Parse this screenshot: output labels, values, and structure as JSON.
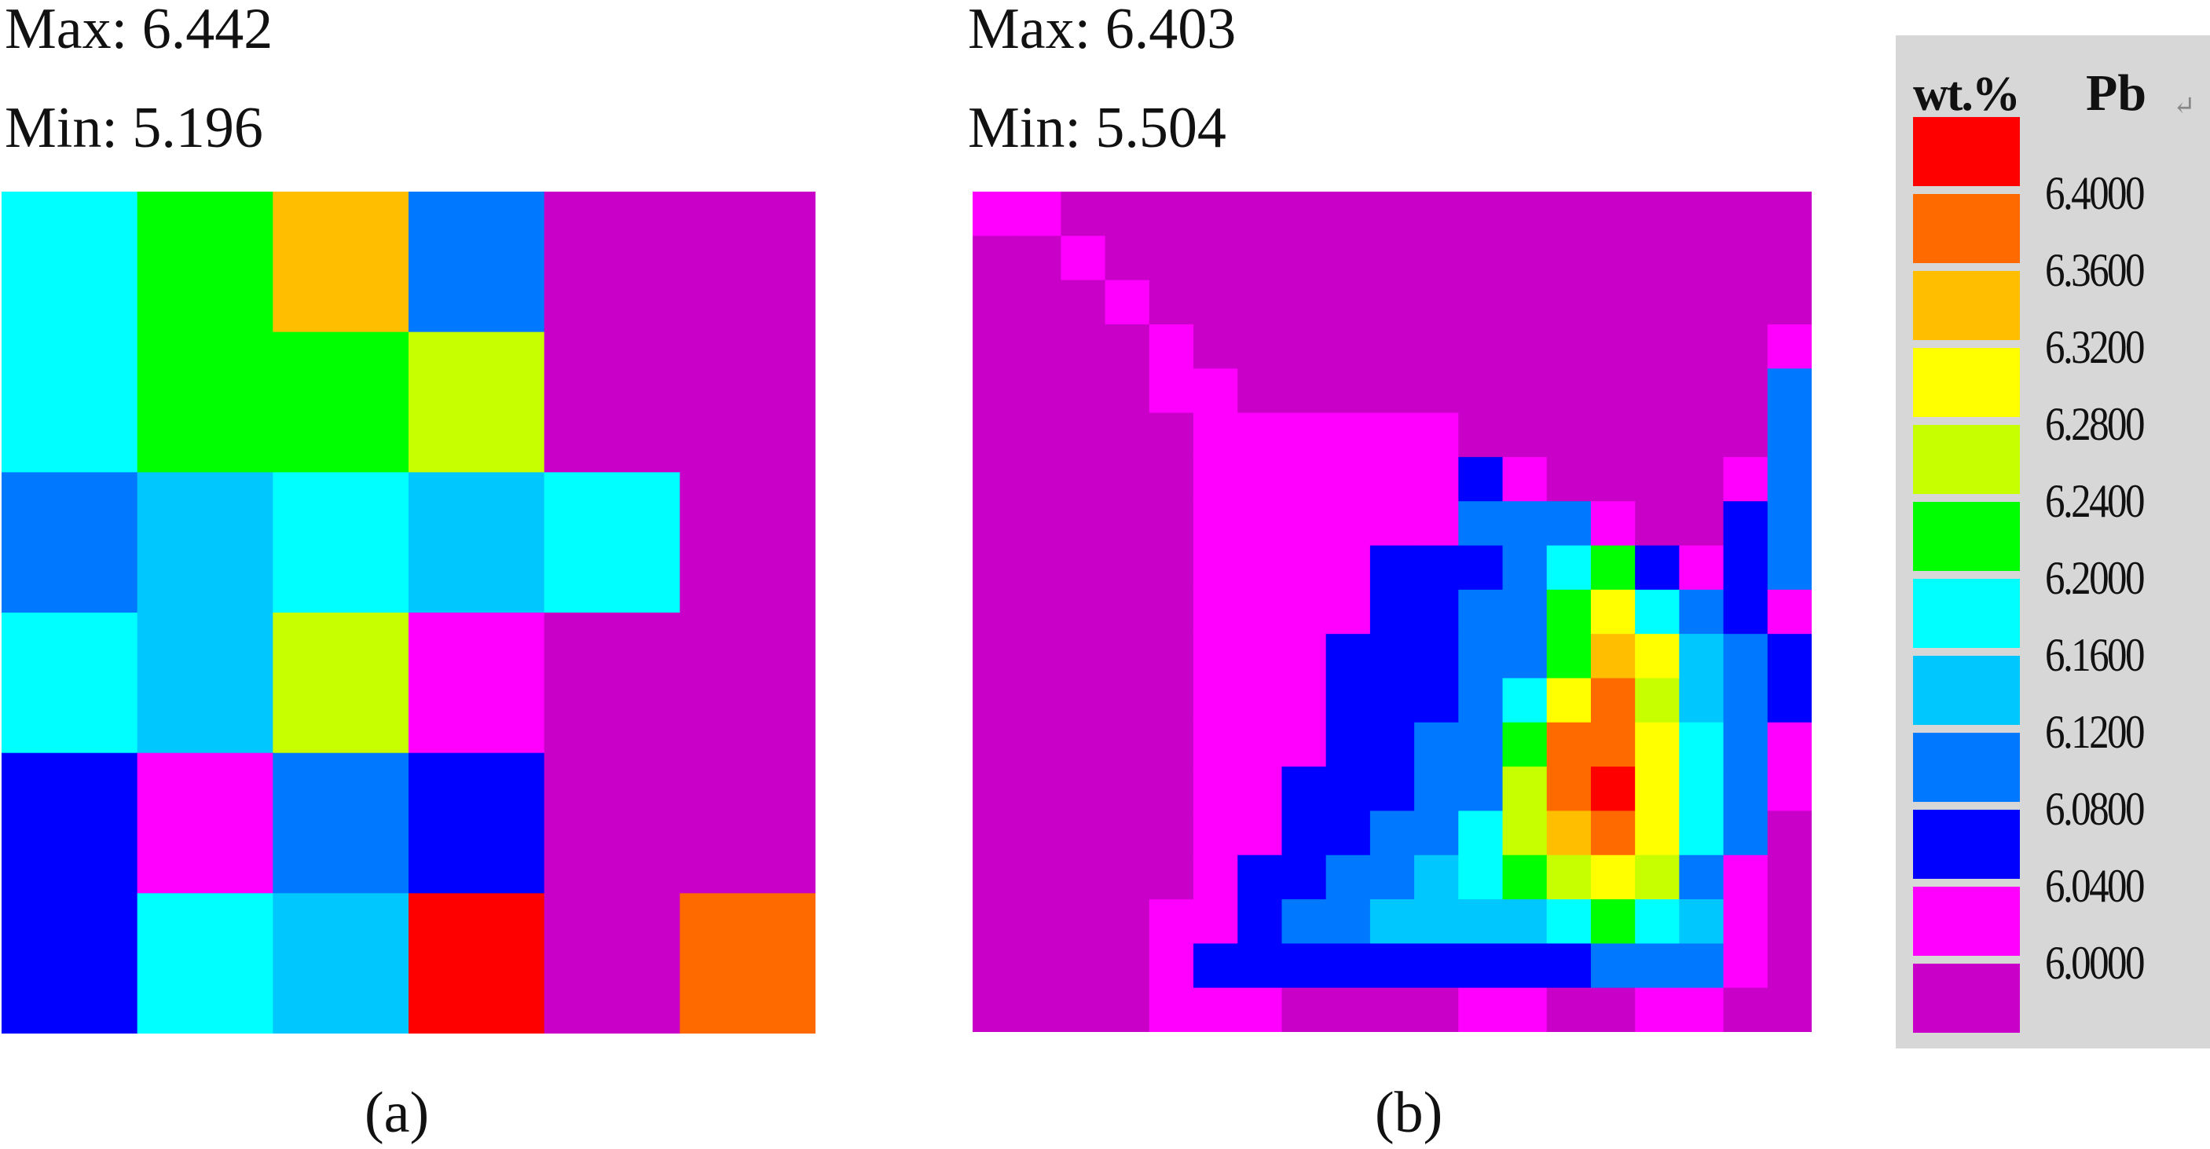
{
  "panel_a": {
    "max_text": "Max: 6.442",
    "min_text": "Min: 5.196",
    "caption": "(a)"
  },
  "panel_b": {
    "max_text": "Max: 6.403",
    "min_text": "Min: 5.504",
    "caption": "(b)"
  },
  "legend": {
    "unit": "wt.%",
    "element": "Pb",
    "return_mark": "↵",
    "ticks": [
      "6.4000",
      "6.3600",
      "6.3200",
      "6.2800",
      "6.2400",
      "6.2000",
      "6.1600",
      "6.1200",
      "6.0800",
      "6.0400",
      "6.0000"
    ],
    "colors": [
      "#ff0000",
      "#ff6a00",
      "#ffbf00",
      "#ffff00",
      "#c8ff00",
      "#00ff00",
      "#00ffff",
      "#00c8ff",
      "#0078ff",
      "#0000ff",
      "#ff00ff",
      "#c800c8"
    ]
  },
  "chart_data": [
    {
      "type": "heatmap",
      "panel": "(a)",
      "value_label": "wt.% Pb",
      "max": 6.442,
      "min": 5.196,
      "rows": 6,
      "cols": 6,
      "levels": [
        [
          6,
          5,
          2,
          8,
          11,
          11
        ],
        [
          6,
          5,
          5,
          4,
          11,
          11
        ],
        [
          8,
          7,
          6,
          7,
          6,
          11
        ],
        [
          6,
          7,
          4,
          10,
          11,
          11
        ],
        [
          9,
          10,
          8,
          9,
          11,
          11
        ],
        [
          9,
          6,
          7,
          0,
          11,
          1
        ]
      ]
    },
    {
      "type": "heatmap",
      "panel": "(b)",
      "value_label": "wt.% Pb",
      "max": 6.403,
      "min": 5.504,
      "rows": 19,
      "cols": 19,
      "levels": [
        [
          10,
          10,
          11,
          11,
          11,
          11,
          11,
          11,
          11,
          11,
          11,
          11,
          11,
          11,
          11,
          11,
          11,
          11,
          11
        ],
        [
          11,
          11,
          10,
          11,
          11,
          11,
          11,
          11,
          11,
          11,
          11,
          11,
          11,
          11,
          11,
          11,
          11,
          11,
          11
        ],
        [
          11,
          11,
          11,
          10,
          11,
          11,
          11,
          11,
          11,
          11,
          11,
          11,
          11,
          11,
          11,
          11,
          11,
          11,
          11
        ],
        [
          11,
          11,
          11,
          11,
          10,
          11,
          11,
          11,
          11,
          11,
          11,
          11,
          11,
          11,
          11,
          11,
          11,
          11,
          10
        ],
        [
          11,
          11,
          11,
          11,
          10,
          10,
          11,
          11,
          11,
          11,
          11,
          11,
          11,
          11,
          11,
          11,
          11,
          11,
          8
        ],
        [
          11,
          11,
          11,
          11,
          11,
          10,
          10,
          10,
          10,
          10,
          10,
          11,
          11,
          11,
          11,
          11,
          11,
          11,
          8
        ],
        [
          11,
          11,
          11,
          11,
          11,
          10,
          10,
          10,
          10,
          10,
          10,
          9,
          10,
          11,
          11,
          11,
          11,
          10,
          8
        ],
        [
          11,
          11,
          11,
          11,
          11,
          10,
          10,
          10,
          10,
          10,
          10,
          8,
          8,
          8,
          10,
          11,
          11,
          9,
          8
        ],
        [
          11,
          11,
          11,
          11,
          11,
          10,
          10,
          10,
          10,
          9,
          9,
          9,
          8,
          6,
          5,
          9,
          10,
          9,
          8
        ],
        [
          11,
          11,
          11,
          11,
          11,
          10,
          10,
          10,
          10,
          9,
          9,
          8,
          8,
          5,
          3,
          6,
          8,
          9,
          10
        ],
        [
          11,
          11,
          11,
          11,
          11,
          10,
          10,
          10,
          9,
          9,
          9,
          8,
          8,
          5,
          2,
          3,
          7,
          8,
          9
        ],
        [
          11,
          11,
          11,
          11,
          11,
          10,
          10,
          10,
          9,
          9,
          9,
          8,
          6,
          3,
          1,
          4,
          7,
          8,
          9
        ],
        [
          11,
          11,
          11,
          11,
          11,
          10,
          10,
          10,
          9,
          9,
          8,
          8,
          5,
          1,
          1,
          3,
          6,
          8,
          10
        ],
        [
          11,
          11,
          11,
          11,
          11,
          10,
          10,
          9,
          9,
          9,
          8,
          8,
          4,
          1,
          0,
          3,
          6,
          8,
          10
        ],
        [
          11,
          11,
          11,
          11,
          11,
          10,
          10,
          9,
          9,
          8,
          8,
          6,
          4,
          2,
          1,
          3,
          6,
          8,
          11
        ],
        [
          11,
          11,
          11,
          11,
          11,
          10,
          9,
          9,
          8,
          8,
          7,
          6,
          5,
          4,
          3,
          4,
          8,
          10,
          11
        ],
        [
          11,
          11,
          11,
          11,
          10,
          10,
          9,
          8,
          8,
          7,
          7,
          7,
          7,
          6,
          5,
          6,
          7,
          10,
          11
        ],
        [
          11,
          11,
          11,
          11,
          10,
          9,
          9,
          9,
          9,
          9,
          9,
          9,
          9,
          9,
          8,
          8,
          8,
          10,
          11
        ],
        [
          11,
          11,
          11,
          11,
          10,
          10,
          10,
          11,
          11,
          11,
          11,
          10,
          10,
          11,
          11,
          10,
          10,
          11,
          11
        ]
      ]
    }
  ]
}
